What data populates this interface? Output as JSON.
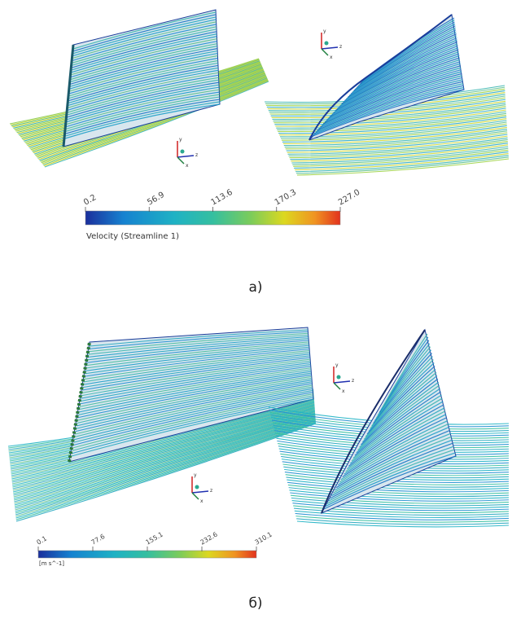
{
  "axis_labels": [
    "x",
    "y",
    "z"
  ],
  "panel_a": {
    "colorbar": {
      "ticks": [
        "0.2",
        "56.9",
        "113.6",
        "170.3",
        "227.0"
      ],
      "label": "Velocity (Streamline 1)"
    },
    "caption": "а)"
  },
  "panel_b": {
    "colorbar": {
      "ticks": [
        "0.1",
        "77.6",
        "155.1",
        "232.6",
        "310.1"
      ],
      "label": "[m s^-1]"
    },
    "caption": "б)"
  }
}
